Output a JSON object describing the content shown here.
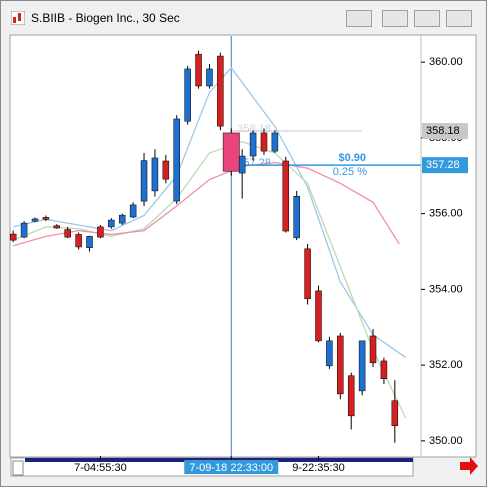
{
  "window_title": "S.BIIB - Biogen Inc., 30 Sec",
  "chart_data": {
    "type": "candlestick",
    "xlim": [
      -0.2,
      37.4
    ],
    "ylim": [
      349.6,
      360.69
    ],
    "yticks": [
      {
        "value": 350,
        "label": "350.00"
      },
      {
        "value": 352,
        "label": "352.00"
      },
      {
        "value": 354,
        "label": "354.00"
      },
      {
        "value": 356,
        "label": "356.00"
      },
      {
        "value": 358,
        "label": "358.00"
      },
      {
        "value": 360,
        "label": "360.00"
      }
    ],
    "xticks": [
      {
        "value": 8,
        "label": "7-04:55:30"
      },
      {
        "value": 20,
        "label": "7-09-18 22:33:00",
        "highlight": true
      },
      {
        "value": 28,
        "label": "9-22:35:30"
      }
    ],
    "up_color": "#1f6fd1",
    "down_color": "#d42020",
    "selected_color": "#e8457a",
    "selected": 20,
    "open": [
      355.46,
      355.38,
      355.8,
      355.9,
      355.68,
      355.58,
      355.45,
      355.1,
      355.65,
      355.65,
      355.75,
      355.91,
      356.33,
      356.6,
      357.39,
      356.33,
      358.44,
      360.21,
      359.37,
      360.16,
      358.13,
      357.07,
      357.52,
      358.13,
      357.65,
      357.39,
      355.36,
      355.07,
      353.96,
      351.98,
      352.77,
      351.72,
      351.32,
      352.77,
      352.11,
      351.06
    ],
    "high": [
      355.55,
      355.8,
      355.9,
      355.95,
      355.72,
      355.65,
      355.5,
      355.42,
      355.7,
      355.88,
      356.0,
      356.3,
      357.6,
      357.7,
      357.55,
      358.6,
      359.9,
      360.3,
      359.95,
      360.25,
      358.25,
      357.7,
      358.2,
      358.25,
      358.2,
      357.5,
      356.6,
      355.2,
      354.1,
      352.75,
      352.85,
      351.8,
      352.65,
      352.95,
      352.2,
      351.6
    ],
    "low": [
      355.25,
      355.35,
      355.78,
      355.8,
      355.6,
      355.35,
      355.05,
      355.0,
      355.35,
      355.6,
      355.7,
      355.88,
      356.2,
      356.45,
      356.8,
      356.25,
      358.35,
      359.3,
      359.3,
      358.2,
      357.0,
      356.4,
      357.4,
      357.55,
      357.6,
      355.5,
      355.3,
      353.6,
      352.6,
      351.9,
      351.1,
      350.3,
      351.2,
      351.95,
      351.5,
      349.95
    ],
    "close": [
      355.3,
      355.75,
      355.86,
      355.85,
      355.62,
      355.38,
      355.12,
      355.4,
      355.38,
      355.83,
      355.96,
      356.23,
      357.4,
      357.47,
      356.91,
      358.5,
      359.82,
      359.37,
      359.82,
      358.31,
      357.12,
      357.52,
      358.13,
      357.65,
      358.13,
      355.54,
      356.46,
      353.75,
      352.64,
      352.64,
      351.24,
      350.66,
      352.64,
      352.06,
      351.64,
      350.4
    ],
    "lines": [
      {
        "color": "#9cc8ea",
        "x": [
          0,
          3,
          6,
          9,
          12,
          15,
          18,
          20,
          24,
          27,
          30,
          33,
          36
        ],
        "values": [
          355.65,
          355.85,
          355.7,
          355.55,
          355.95,
          357.0,
          359.2,
          359.85,
          358.3,
          356.7,
          354.2,
          352.8,
          352.2
        ]
      },
      {
        "color": "#b8dcb0",
        "x": [
          0,
          3,
          6,
          9,
          12,
          15,
          18,
          21,
          24,
          27,
          30,
          33,
          36
        ],
        "values": [
          355.3,
          355.65,
          355.6,
          355.4,
          355.6,
          356.4,
          357.6,
          357.9,
          357.6,
          356.8,
          354.6,
          352.4,
          350.6
        ]
      },
      {
        "color": "#f08cb0",
        "x": [
          0,
          3,
          6,
          9,
          12,
          15,
          18,
          21,
          24,
          27,
          30,
          33,
          35.4
        ],
        "values": [
          355.15,
          355.4,
          355.55,
          355.45,
          355.55,
          356.2,
          356.9,
          357.25,
          357.35,
          357.2,
          356.8,
          356.3,
          355.2
        ]
      }
    ],
    "price_markers": [
      {
        "value": 358.18,
        "label": "358.18",
        "color": "#c8c8c8",
        "text_color": "#000000"
      },
      {
        "value": 357.28,
        "label": "357.28",
        "color": "#3399dd",
        "text_color": "#ffffff"
      }
    ],
    "change_label": "$0.90",
    "change_pct_label": "0.25 %"
  }
}
